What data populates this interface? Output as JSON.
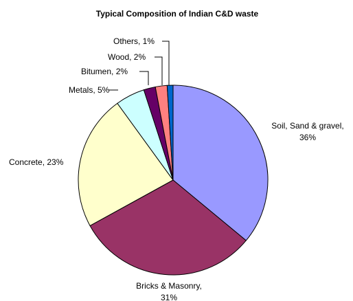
{
  "chart_data": {
    "type": "pie",
    "title": "Typical Composition of Indian C&D waste",
    "slices": [
      {
        "name": "Soil, Sand & gravel",
        "value": 36,
        "label_lines": [
          "Soil, Sand & gravel,",
          "36%"
        ],
        "color": "#9999FF"
      },
      {
        "name": "Bricks & Masonry",
        "value": 31,
        "label_lines": [
          "Bricks & Masonry,",
          "31%"
        ],
        "color": "#993366"
      },
      {
        "name": "Concrete",
        "value": 23,
        "label_lines": [
          "Concrete, 23%"
        ],
        "color": "#FFFFCC"
      },
      {
        "name": "Metals",
        "value": 5,
        "label_lines": [
          "Metals, 5%"
        ],
        "color": "#CCFFFF"
      },
      {
        "name": "Bitumen",
        "value": 2,
        "label_lines": [
          "Bitumen, 2%"
        ],
        "color": "#660066"
      },
      {
        "name": "Wood",
        "value": 2,
        "label_lines": [
          "Wood, 2%"
        ],
        "color": "#FF8080"
      },
      {
        "name": "Others",
        "value": 1,
        "label_lines": [
          "Others, 1%"
        ],
        "color": "#0066CC"
      }
    ],
    "start": "top, clockwise",
    "legend": "none"
  }
}
